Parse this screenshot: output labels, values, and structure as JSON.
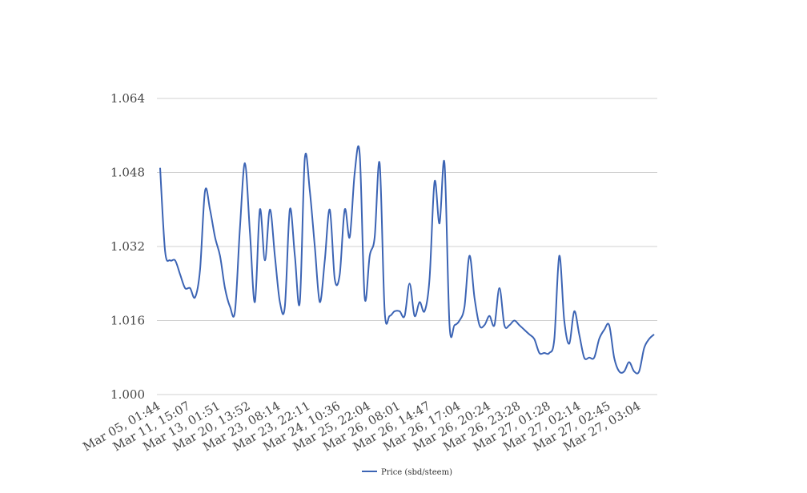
{
  "chart_data": {
    "type": "line",
    "title": "",
    "xlabel": "",
    "ylabel": "",
    "ylim": [
      1.0,
      1.064
    ],
    "yticks": [
      "1.000",
      "1.016",
      "1.032",
      "1.048",
      "1.064"
    ],
    "xtick_labels": [
      "Mar 05, 01:44",
      "Mar 11, 15:07",
      "Mar 13, 01:51",
      "Mar 20, 13:52",
      "Mar 23, 08:14",
      "Mar 23, 22:11",
      "Mar 24, 10:36",
      "Mar 25, 22:04",
      "Mar 26, 08:01",
      "Mar 26, 14:47",
      "Mar 26, 17:04",
      "Mar 26, 20:24",
      "Mar 26, 23:28",
      "Mar 27, 01:28",
      "Mar 27, 02:14",
      "Mar 27, 02:45",
      "Mar 27, 03:04"
    ],
    "grid": true,
    "legend_position": "bottom",
    "color": "#3c64b4",
    "series": [
      {
        "name": "Price (sbd/steem)",
        "values": [
          1.049,
          1.031,
          1.029,
          1.029,
          1.026,
          1.023,
          1.023,
          1.021,
          1.027,
          1.044,
          1.04,
          1.034,
          1.03,
          1.023,
          1.019,
          1.018,
          1.036,
          1.05,
          1.035,
          1.02,
          1.04,
          1.029,
          1.04,
          1.03,
          1.02,
          1.019,
          1.04,
          1.03,
          1.02,
          1.051,
          1.044,
          1.032,
          1.02,
          1.029,
          1.04,
          1.025,
          1.026,
          1.04,
          1.034,
          1.048,
          1.052,
          1.021,
          1.03,
          1.034,
          1.05,
          1.018,
          1.017,
          1.018,
          1.018,
          1.017,
          1.024,
          1.017,
          1.02,
          1.018,
          1.025,
          1.046,
          1.037,
          1.05,
          1.015,
          1.015,
          1.016,
          1.019,
          1.03,
          1.021,
          1.015,
          1.015,
          1.017,
          1.015,
          1.023,
          1.015,
          1.015,
          1.016,
          1.015,
          1.014,
          1.013,
          1.012,
          1.009,
          1.009,
          1.009,
          1.012,
          1.03,
          1.016,
          1.011,
          1.018,
          1.013,
          1.008,
          1.008,
          1.008,
          1.012,
          1.014,
          1.015,
          1.008,
          1.005,
          1.005,
          1.007,
          1.005,
          1.005,
          1.01,
          1.012,
          1.013
        ]
      }
    ]
  }
}
